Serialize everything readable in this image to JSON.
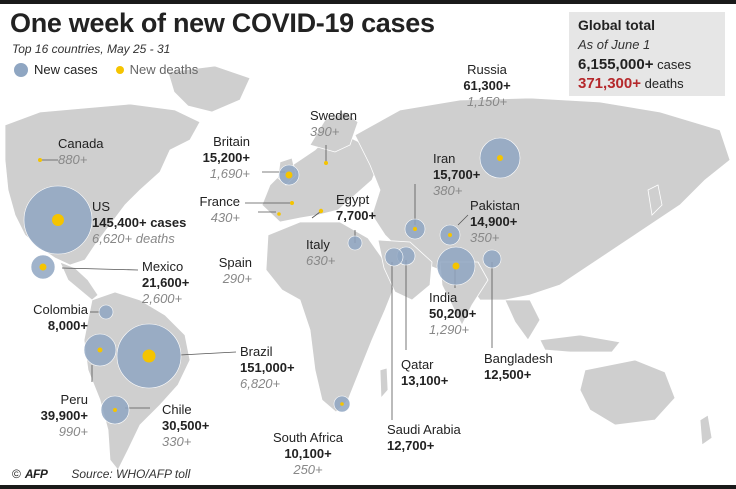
{
  "header": {
    "title": "One week of new COVID-19 cases",
    "subtitle": "Top 16 countries, May 25 - 31"
  },
  "legend": {
    "cases_label": "New cases",
    "deaths_label": "New deaths"
  },
  "global": {
    "title": "Global total",
    "as_of": "As of June 1",
    "cases_value": "6,155,000+",
    "cases_unit": "cases",
    "deaths_value": "371,300+",
    "deaths_unit": "deaths"
  },
  "colors": {
    "case_bubble": "#8fa6c2",
    "death_dot": "#f5c400",
    "land": "#cfcfcf",
    "water": "#ffffff",
    "deaths_total": "#b5282b"
  },
  "countries": {
    "us": {
      "name": "US",
      "cases": "145,400+ cases",
      "deaths": "6,620+ deaths",
      "new_cases": 145400,
      "new_deaths": 6620
    },
    "canada": {
      "name": "Canada",
      "cases": "",
      "deaths": "880+",
      "new_cases": null,
      "new_deaths": 880
    },
    "mexico": {
      "name": "Mexico",
      "cases": "21,600+",
      "deaths": "2,600+",
      "new_cases": 21600,
      "new_deaths": 2600
    },
    "colombia": {
      "name": "Colombia",
      "cases": "8,000+",
      "deaths": "",
      "new_cases": 8000,
      "new_deaths": null
    },
    "peru": {
      "name": "Peru",
      "cases": "39,900+",
      "deaths": "990+",
      "new_cases": 39900,
      "new_deaths": 990
    },
    "brazil": {
      "name": "Brazil",
      "cases": "151,000+",
      "deaths": "6,820+",
      "new_cases": 151000,
      "new_deaths": 6820
    },
    "chile": {
      "name": "Chile",
      "cases": "30,500+",
      "deaths": "330+",
      "new_cases": 30500,
      "new_deaths": 330
    },
    "britain": {
      "name": "Britain",
      "cases": "15,200+",
      "deaths": "1,690+",
      "new_cases": 15200,
      "new_deaths": 1690
    },
    "france": {
      "name": "France",
      "cases": "",
      "deaths": "430+",
      "new_cases": null,
      "new_deaths": 430
    },
    "spain": {
      "name": "Spain",
      "cases": "",
      "deaths": "290+",
      "new_cases": null,
      "new_deaths": 290
    },
    "italy": {
      "name": "Italy",
      "cases": "",
      "deaths": "630+",
      "new_cases": null,
      "new_deaths": 630
    },
    "sweden": {
      "name": "Sweden",
      "cases": "",
      "deaths": "390+",
      "new_cases": null,
      "new_deaths": 390
    },
    "egypt": {
      "name": "Egypt",
      "cases": "7,700+",
      "deaths": "",
      "new_cases": 7700,
      "new_deaths": null
    },
    "russia": {
      "name": "Russia",
      "cases": "61,300+",
      "deaths": "1,150+",
      "new_cases": 61300,
      "new_deaths": 1150
    },
    "iran": {
      "name": "Iran",
      "cases": "15,700+",
      "deaths": "380+",
      "new_cases": 15700,
      "new_deaths": 380
    },
    "pakistan": {
      "name": "Pakistan",
      "cases": "14,900+",
      "deaths": "350+",
      "new_cases": 14900,
      "new_deaths": 350
    },
    "india": {
      "name": "India",
      "cases": "50,200+",
      "deaths": "1,290+",
      "new_cases": 50200,
      "new_deaths": 1290
    },
    "bangladesh": {
      "name": "Bangladesh",
      "cases": "12,500+",
      "deaths": "",
      "new_cases": 12500,
      "new_deaths": null
    },
    "qatar": {
      "name": "Qatar",
      "cases": "13,100+",
      "deaths": "",
      "new_cases": 13100,
      "new_deaths": null
    },
    "saudi": {
      "name": "Saudi Arabia",
      "cases": "12,700+",
      "deaths": "",
      "new_cases": 12700,
      "new_deaths": null
    },
    "southafrica": {
      "name": "South Africa",
      "cases": "10,100+",
      "deaths": "250+",
      "new_cases": 10100,
      "new_deaths": 250
    }
  },
  "footer": {
    "copyright": "©",
    "agency": "AFP",
    "source": "Source: WHO/AFP toll"
  }
}
